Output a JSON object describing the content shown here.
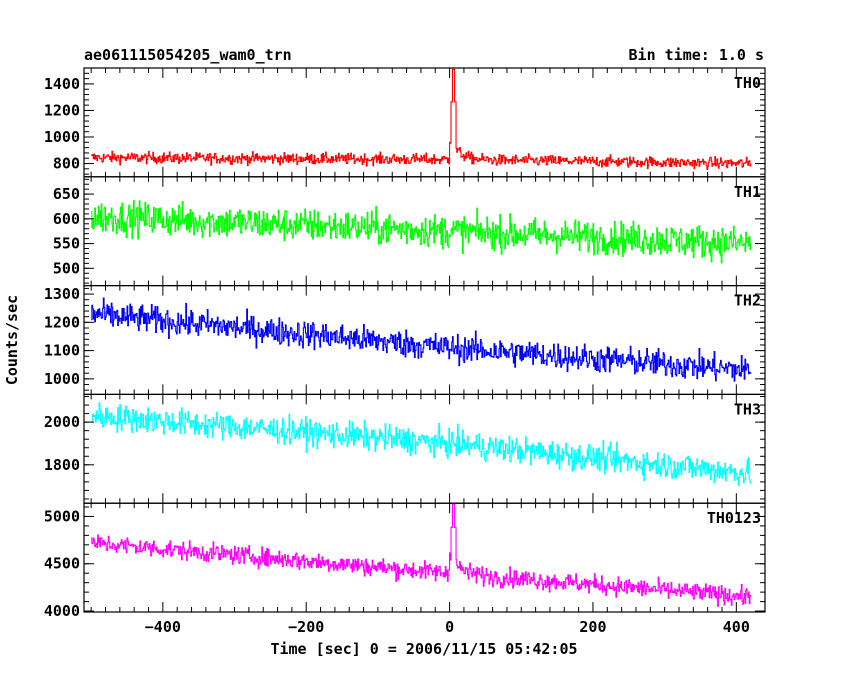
{
  "header": {
    "title": "ae061115054205_wam0_trn",
    "bin_time": "Bin time: 1.0 s"
  },
  "axes": {
    "ylabel": "Counts/sec",
    "xlabel": "Time [sec] 0 = 2006/11/15 05:42:05"
  },
  "chart_data": {
    "type": "line",
    "x_range": [
      -510,
      440
    ],
    "x_ticks": [
      -400,
      -200,
      0,
      200,
      400
    ],
    "x_tick_labels": [
      "−400",
      "−200",
      "0",
      "200",
      "400"
    ],
    "x_start": -500,
    "x_end": 420,
    "bin_seconds": 1.0,
    "panels": [
      {
        "name": "TH0",
        "color": "#ff0000",
        "ylim": [
          700,
          1520
        ],
        "y_ticks": [
          800,
          1000,
          1200,
          1400
        ],
        "y_tick_labels": [
          "800",
          "1000",
          "1200",
          "1400"
        ],
        "baseline": [
          [
            -500,
            845
          ],
          [
            0,
            830
          ],
          [
            420,
            800
          ]
        ],
        "noise": 30,
        "burst": {
          "t0": 0,
          "peak_time": 5,
          "peak_value": 1510,
          "shoulder": 1100,
          "decay": 12
        }
      },
      {
        "name": "TH1",
        "color": "#00ff00",
        "ylim": [
          465,
          685
        ],
        "y_ticks": [
          500,
          550,
          600,
          650
        ],
        "y_tick_labels": [
          "500",
          "550",
          "600",
          "650"
        ],
        "baseline": [
          [
            -500,
            605
          ],
          [
            0,
            575
          ],
          [
            420,
            550
          ]
        ],
        "noise": 24
      },
      {
        "name": "TH2",
        "color": "#0000ff",
        "ylim": [
          945,
          1330
        ],
        "y_ticks": [
          1000,
          1100,
          1200,
          1300
        ],
        "y_tick_labels": [
          "1000",
          "1100",
          "1200",
          "1300"
        ],
        "baseline": [
          [
            -500,
            1230
          ],
          [
            0,
            1110
          ],
          [
            420,
            1030
          ]
        ],
        "noise": 35
      },
      {
        "name": "TH3",
        "color": "#00ffff",
        "ylim": [
          1620,
          2130
        ],
        "y_ticks": [
          1800,
          2000
        ],
        "y_tick_labels": [
          "1800",
          "2000"
        ],
        "baseline": [
          [
            -500,
            2030
          ],
          [
            0,
            1900
          ],
          [
            420,
            1760
          ]
        ],
        "noise": 45
      },
      {
        "name": "TH0123",
        "color": "#ff00ff",
        "ylim": [
          3990,
          5140
        ],
        "y_ticks": [
          4000,
          4500,
          5000
        ],
        "y_tick_labels": [
          "4000",
          "4500",
          "5000"
        ],
        "baseline": [
          [
            -500,
            4720
          ],
          [
            0,
            4400
          ],
          [
            420,
            4150
          ]
        ],
        "noise": 70,
        "burst": {
          "t0": 0,
          "peak_time": 5,
          "peak_value": 5130,
          "shoulder": 4720,
          "decay": 12
        }
      }
    ]
  }
}
